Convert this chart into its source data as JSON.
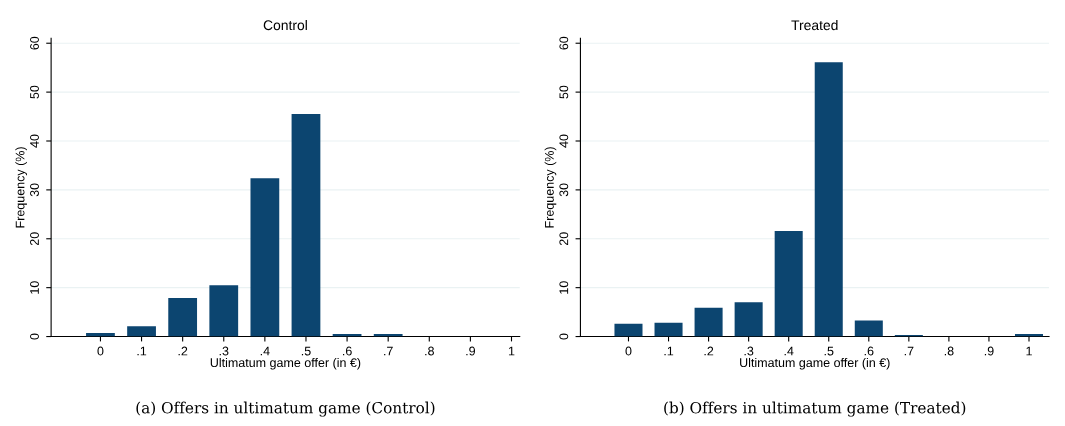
{
  "chart_data": [
    {
      "type": "bar",
      "title": "Control",
      "xlabel": "Ultimatum game offer (in €)",
      "ylabel": "Frequency (%)",
      "x": [
        0,
        0.1,
        0.2,
        0.3,
        0.4,
        0.5,
        0.6,
        0.7,
        0.8,
        0.9,
        1
      ],
      "values": [
        0.7,
        2.1,
        7.9,
        10.5,
        32.4,
        45.5,
        0.5,
        0.5,
        0,
        0,
        0
      ],
      "color": "#0c4570",
      "xlim": [
        -0.12,
        1.02
      ],
      "xticks": [
        0,
        {
          "value": 0.1,
          "label": ".1"
        },
        {
          "value": 0.2,
          "label": ".2"
        },
        {
          "value": 0.3,
          "label": ".3"
        },
        {
          "value": 0.4,
          "label": ".4"
        },
        {
          "value": 0.5,
          "label": ".5"
        },
        {
          "value": 0.6,
          "label": ".6"
        },
        {
          "value": 0.7,
          "label": ".7"
        },
        {
          "value": 0.8,
          "label": ".8"
        },
        {
          "value": 0.9,
          "label": ".9"
        },
        1
      ],
      "ylim": [
        0,
        61
      ],
      "yticks": [
        0,
        10,
        20,
        30,
        40,
        50,
        60
      ],
      "grid": "y",
      "annotations": [
        "(a) Offers in ultimatum game (Control)"
      ]
    },
    {
      "type": "bar",
      "title": "Treated",
      "xlabel": "Ultimatum game offer (in €)",
      "ylabel": "Frequency (%)",
      "x": [
        0,
        0.1,
        0.2,
        0.3,
        0.4,
        0.5,
        0.6,
        0.7,
        0.8,
        0.9,
        1
      ],
      "values": [
        2.6,
        2.8,
        5.9,
        7.0,
        21.6,
        56.1,
        3.3,
        0.3,
        0,
        0,
        0.5
      ],
      "color": "#0c4570",
      "xlim": [
        -0.12,
        1.05
      ],
      "xticks": [
        0,
        {
          "value": 0.1,
          "label": ".1"
        },
        {
          "value": 0.2,
          "label": ".2"
        },
        {
          "value": 0.3,
          "label": ".3"
        },
        {
          "value": 0.4,
          "label": ".4"
        },
        {
          "value": 0.5,
          "label": ".5"
        },
        {
          "value": 0.6,
          "label": ".6"
        },
        {
          "value": 0.7,
          "label": ".7"
        },
        {
          "value": 0.8,
          "label": ".8"
        },
        {
          "value": 0.9,
          "label": ".9"
        },
        1
      ],
      "ylim": [
        0,
        61
      ],
      "yticks": [
        0,
        10,
        20,
        30,
        40,
        50,
        60
      ],
      "grid": "y",
      "annotations": [
        "(b) Offers in ultimatum game (Treated)"
      ]
    }
  ]
}
